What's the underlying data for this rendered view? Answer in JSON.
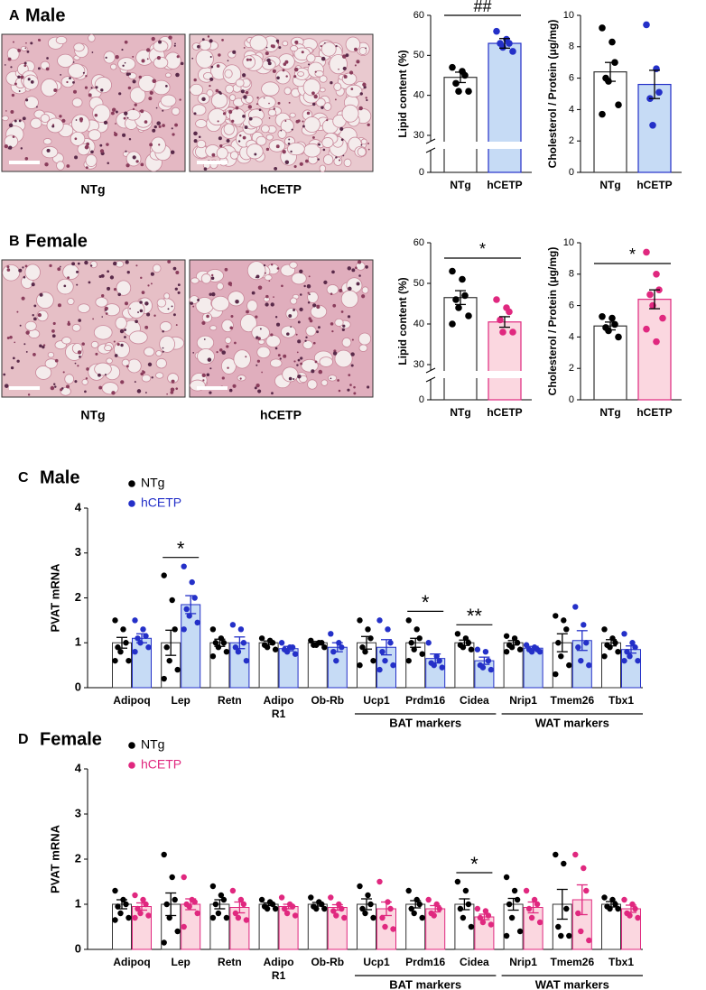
{
  "panels": [
    {
      "letter": "A",
      "title": "Male",
      "captions": [
        "NTg",
        "hCETP"
      ]
    },
    {
      "letter": "B",
      "title": "Female",
      "captions": [
        "NTg",
        "hCETP"
      ]
    }
  ],
  "chart_data": [
    {
      "type": "bar",
      "ylabel": "Lipid content (%)",
      "categories": [
        "NTg",
        "hCETP"
      ],
      "values": [
        44.5,
        53
      ],
      "errors": [
        1.3,
        1.2
      ],
      "points": [
        [
          47,
          46,
          45,
          43,
          41,
          41
        ],
        [
          56,
          54,
          53,
          53,
          52,
          51
        ]
      ],
      "colors": [
        "#000000",
        "#2430c8"
      ],
      "fills": [
        "#ffffff",
        "#c6dbf5"
      ],
      "ylim": [
        30,
        60
      ],
      "yticks": [
        30,
        40,
        50,
        60
      ],
      "axis_break_floor": 0,
      "significance": "##"
    },
    {
      "type": "bar",
      "ylabel": "Cholesterol / Protein (μg/mg)",
      "categories": [
        "NTg",
        "hCETP"
      ],
      "values": [
        6.4,
        5.6
      ],
      "errors": [
        0.6,
        0.9
      ],
      "points": [
        [
          9.2,
          8.3,
          7,
          6,
          5.8,
          4.3,
          3.7
        ],
        [
          9.4,
          6.6,
          5.1,
          4.7,
          3
        ]
      ],
      "colors": [
        "#000000",
        "#2430c8"
      ],
      "fills": [
        "#ffffff",
        "#c6dbf5"
      ],
      "ylim": [
        0,
        10
      ],
      "yticks": [
        0,
        2,
        4,
        6,
        8,
        10
      ]
    },
    {
      "type": "bar",
      "ylabel": "Lipid content (%)",
      "categories": [
        "NTg",
        "hCETP"
      ],
      "values": [
        46.5,
        40.5
      ],
      "errors": [
        1.7,
        1.3
      ],
      "points": [
        [
          53,
          51,
          47,
          46,
          44,
          42,
          40
        ],
        [
          46,
          44,
          43,
          41,
          38,
          38
        ]
      ],
      "colors": [
        "#000000",
        "#e0287f"
      ],
      "fills": [
        "#ffffff",
        "#fbd7e0"
      ],
      "ylim": [
        30,
        60
      ],
      "yticks": [
        30,
        40,
        50,
        60
      ],
      "axis_break_floor": 0,
      "significance": "*"
    },
    {
      "type": "bar",
      "ylabel": "Cholesterol / Protein (μg/mg)",
      "categories": [
        "NTg",
        "hCETP"
      ],
      "values": [
        4.7,
        6.4
      ],
      "errors": [
        0.25,
        0.6
      ],
      "points": [
        [
          5.3,
          5.2,
          4.8,
          4.6,
          4.4,
          4
        ],
        [
          9.4,
          8,
          7,
          6.7,
          6,
          5.2,
          4.5,
          3.7
        ]
      ],
      "colors": [
        "#000000",
        "#e0287f"
      ],
      "fills": [
        "#ffffff",
        "#fbd7e0"
      ],
      "ylim": [
        0,
        10
      ],
      "yticks": [
        0,
        2,
        4,
        6,
        8,
        10
      ],
      "significance": "*"
    },
    {
      "type": "grouped_bar",
      "letter": "C",
      "title": "Male",
      "ylabel": "PVAT mRNA",
      "categories": [
        "Adipoq",
        "Lep",
        "Retn",
        "Adipo\nR1",
        "Ob-Rb",
        "Ucp1",
        "Prdm16",
        "Cidea",
        "Nrip1",
        "Tmem26",
        "Tbx1"
      ],
      "series": [
        {
          "name": "NTg",
          "color": "#000000",
          "fill": "#ffffff",
          "values": [
            1,
            1,
            1,
            1,
            1,
            1,
            1,
            1,
            1,
            1,
            1
          ],
          "errors": [
            0.12,
            0.28,
            0.08,
            0.04,
            0.03,
            0.14,
            0.1,
            0.06,
            0.05,
            0.2,
            0.07
          ],
          "points": [
            [
              1.5,
              1.3,
              1,
              0.9,
              0.8,
              0.6,
              0.6
            ],
            [
              2.5,
              1.95,
              1.3,
              0.9,
              0.6,
              0.4,
              0.2
            ],
            [
              1.3,
              1.1,
              1,
              1,
              0.9,
              0.8,
              0.7
            ],
            [
              1.1,
              1.05,
              1,
              0.95,
              0.9,
              0.85
            ],
            [
              1.05,
              1,
              1,
              0.95,
              0.95,
              0.9
            ],
            [
              1.5,
              1.3,
              1.1,
              0.9,
              0.8,
              0.6,
              0.5
            ],
            [
              1.5,
              1.3,
              1.1,
              1,
              0.85,
              0.75,
              0.6
            ],
            [
              1.2,
              1.1,
              1,
              0.95,
              0.9,
              0.85
            ],
            [
              1.15,
              1.1,
              1,
              0.95,
              0.9,
              0.85,
              0.8
            ],
            [
              1.6,
              1.5,
              1.3,
              1,
              0.7,
              0.5,
              0.3
            ],
            [
              1.3,
              1.1,
              1,
              0.95,
              0.9,
              0.8,
              0.7
            ]
          ]
        },
        {
          "name": "hCETP",
          "color": "#2430c8",
          "fill": "#c6dbf5",
          "values": [
            1.1,
            1.85,
            1,
            0.87,
            0.9,
            0.9,
            0.65,
            0.6,
            0.88,
            1.05,
            0.85
          ],
          "errors": [
            0.1,
            0.2,
            0.13,
            0.05,
            0.1,
            0.17,
            0.1,
            0.08,
            0.04,
            0.22,
            0.08
          ],
          "points": [
            [
              1.5,
              1.3,
              1.15,
              1.1,
              1,
              0.9,
              0.8
            ],
            [
              2.7,
              2.35,
              2,
              1.75,
              1.6,
              1.45,
              1.3
            ],
            [
              1.4,
              1.3,
              1,
              0.9,
              0.8,
              0.6
            ],
            [
              1,
              0.9,
              0.9,
              0.85,
              0.8,
              0.75
            ],
            [
              1.2,
              1,
              0.9,
              0.8,
              0.6
            ],
            [
              1.5,
              1.3,
              1,
              0.8,
              0.6,
              0.5,
              0.4
            ],
            [
              1,
              0.7,
              0.6,
              0.55,
              0.5,
              0.45
            ],
            [
              0.85,
              0.8,
              0.6,
              0.5,
              0.45,
              0.4
            ],
            [
              0.95,
              0.9,
              0.85,
              0.85,
              0.8,
              0.8
            ],
            [
              1.8,
              1.4,
              1,
              0.9,
              0.6,
              0.5
            ],
            [
              1.2,
              1,
              0.9,
              0.8,
              0.7,
              0.6,
              0.6
            ]
          ]
        }
      ],
      "significance": [
        null,
        "*",
        null,
        null,
        null,
        null,
        "*",
        "**",
        null,
        null,
        null
      ],
      "groups": [
        {
          "label": "BAT markers",
          "first": "Ucp1",
          "last": "Cidea"
        },
        {
          "label": "WAT markers",
          "first": "Nrip1",
          "last": "Tbx1"
        }
      ],
      "ylim": [
        0,
        4
      ],
      "yticks": [
        0,
        1,
        2,
        3,
        4
      ]
    },
    {
      "type": "grouped_bar",
      "letter": "D",
      "title": "Female",
      "ylabel": "PVAT mRNA",
      "categories": [
        "Adipoq",
        "Lep",
        "Retn",
        "Adipo\nR1",
        "Ob-Rb",
        "Ucp1",
        "Prdm16",
        "Cidea",
        "Nrip1",
        "Tmem26",
        "Tbx1"
      ],
      "series": [
        {
          "name": "NTg",
          "color": "#000000",
          "fill": "#ffffff",
          "values": [
            1,
            1,
            1,
            1,
            1,
            1,
            1,
            1,
            1,
            1,
            1
          ],
          "errors": [
            0.1,
            0.25,
            0.1,
            0.03,
            0.04,
            0.12,
            0.08,
            0.12,
            0.13,
            0.33,
            0.06
          ],
          "points": [
            [
              1.3,
              1.1,
              1,
              0.95,
              0.8,
              0.7,
              0.65
            ],
            [
              2.1,
              1.6,
              1.1,
              1,
              0.7,
              0.4,
              0.15
            ],
            [
              1.4,
              1.2,
              1.1,
              1,
              0.8,
              0.7,
              0.7
            ],
            [
              1.1,
              1.05,
              1,
              0.95,
              0.9,
              0.9
            ],
            [
              1.15,
              1.05,
              1,
              0.95,
              0.9,
              0.9
            ],
            [
              1.4,
              1.2,
              1,
              0.9,
              0.8,
              0.7
            ],
            [
              1.3,
              1.1,
              1,
              0.9,
              0.8,
              0.7
            ],
            [
              1.5,
              1.3,
              1,
              0.9,
              0.7,
              0.5
            ],
            [
              1.6,
              1.3,
              1.1,
              1,
              0.7,
              0.4,
              0.3
            ],
            [
              2.1,
              1.9,
              0.9,
              0.5,
              0.3,
              0.3
            ],
            [
              1.15,
              1.1,
              1,
              0.95,
              0.9,
              0.9
            ]
          ]
        },
        {
          "name": "hCETP",
          "color": "#e0287f",
          "fill": "#fbd7e0",
          "values": [
            0.95,
            1,
            0.93,
            0.95,
            0.93,
            0.9,
            0.9,
            0.72,
            0.93,
            1.1,
            0.9
          ],
          "errors": [
            0.08,
            0.12,
            0.12,
            0.05,
            0.06,
            0.15,
            0.07,
            0.06,
            0.12,
            0.33,
            0.08
          ],
          "points": [
            [
              1.2,
              1.1,
              1,
              0.9,
              0.8,
              0.75,
              0.7
            ],
            [
              1.6,
              1.1,
              1.05,
              1,
              0.95,
              0.8,
              0.5
            ],
            [
              1.3,
              1.1,
              1,
              0.8,
              0.7,
              0.65
            ],
            [
              1.15,
              1,
              0.95,
              0.9,
              0.8,
              0.75
            ],
            [
              1.15,
              1,
              0.9,
              0.85,
              0.75,
              0.7
            ],
            [
              1.5,
              1.05,
              0.9,
              0.7,
              0.5,
              0.45
            ],
            [
              1.1,
              1,
              0.9,
              0.8,
              0.75
            ],
            [
              0.9,
              0.85,
              0.75,
              0.7,
              0.6,
              0.55
            ],
            [
              1.3,
              1.1,
              1,
              0.9,
              0.7,
              0.6
            ],
            [
              2.1,
              1.8,
              1.3,
              0.8,
              0.4,
              0.2
            ],
            [
              1.1,
              1,
              0.9,
              0.8,
              0.75,
              0.7
            ]
          ]
        }
      ],
      "significance": [
        null,
        null,
        null,
        null,
        null,
        null,
        null,
        "*",
        null,
        null,
        null
      ],
      "groups": [
        {
          "label": "BAT markers",
          "first": "Ucp1",
          "last": "Cidea"
        },
        {
          "label": "WAT markers",
          "first": "Nrip1",
          "last": "Tbx1"
        }
      ],
      "ylim": [
        0,
        4
      ],
      "yticks": [
        0,
        1,
        2,
        3,
        4
      ]
    }
  ]
}
